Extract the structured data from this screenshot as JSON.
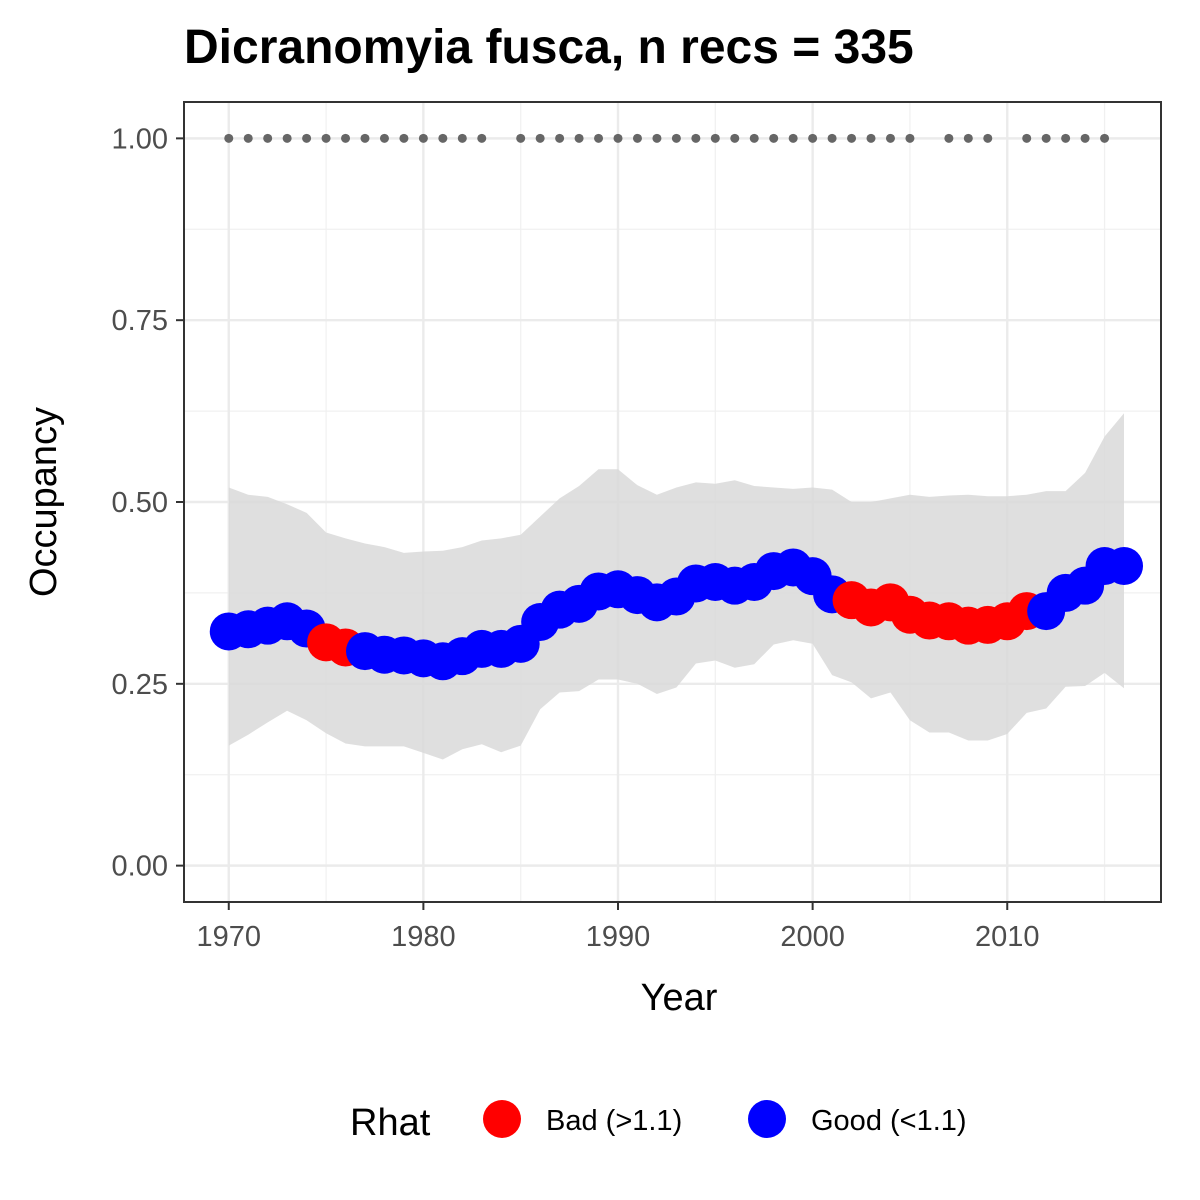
{
  "chart_data": {
    "type": "line",
    "title": "Dicranomyia fusca, n recs = 335",
    "xlabel": "Year",
    "ylabel": "Occupancy",
    "xlim": [
      1967.7,
      2017.9
    ],
    "ylim": [
      -0.05,
      1.05
    ],
    "x_ticks": [
      1970,
      1980,
      1990,
      2000,
      2010
    ],
    "x_tick_labels": [
      "1970",
      "1980",
      "1990",
      "2000",
      "2010"
    ],
    "y_ticks": [
      0,
      0.25,
      0.5,
      0.75,
      1.0
    ],
    "y_tick_labels": [
      "0.00",
      "0.25",
      "0.50",
      "0.75",
      "1.00"
    ],
    "grid": true,
    "legend": {
      "title": "Rhat",
      "position": "bottom",
      "items": [
        {
          "label": "Bad (>1.1)",
          "color": "#ff0000"
        },
        {
          "label": "Good (<1.1)",
          "color": "#0000ff"
        }
      ]
    },
    "colors": {
      "bad": "#ff0000",
      "good": "#0000ff",
      "ribbon": "#d9d9d9",
      "record_dots": "#666666"
    },
    "series": [
      {
        "x": [
          1970,
          1971,
          1972,
          1973,
          1974,
          1975,
          1976,
          1977,
          1978,
          1979,
          1980,
          1981,
          1982,
          1983,
          1984,
          1985,
          1986,
          1987,
          1988,
          1989,
          1990,
          1991,
          1992,
          1993,
          1994,
          1995,
          1996,
          1997,
          1998,
          1999,
          2000,
          2001,
          2002,
          2003,
          2004,
          2005,
          2006,
          2007,
          2008,
          2009,
          2010,
          2011,
          2012,
          2013,
          2014,
          2015,
          2016
        ],
        "values": [
          0.322,
          0.325,
          0.33,
          0.336,
          0.326,
          0.307,
          0.3,
          0.295,
          0.29,
          0.289,
          0.285,
          0.281,
          0.288,
          0.298,
          0.298,
          0.305,
          0.335,
          0.352,
          0.36,
          0.377,
          0.38,
          0.372,
          0.362,
          0.37,
          0.388,
          0.39,
          0.385,
          0.39,
          0.405,
          0.41,
          0.398,
          0.373,
          0.365,
          0.355,
          0.362,
          0.345,
          0.337,
          0.336,
          0.33,
          0.331,
          0.336,
          0.35,
          0.35,
          0.375,
          0.385,
          0.412,
          0.412
        ],
        "lower": [
          0.165,
          0.18,
          0.197,
          0.213,
          0.2,
          0.182,
          0.168,
          0.164,
          0.164,
          0.164,
          0.155,
          0.146,
          0.16,
          0.167,
          0.156,
          0.165,
          0.215,
          0.238,
          0.24,
          0.256,
          0.256,
          0.25,
          0.236,
          0.245,
          0.278,
          0.282,
          0.272,
          0.277,
          0.304,
          0.31,
          0.305,
          0.262,
          0.252,
          0.23,
          0.238,
          0.2,
          0.183,
          0.183,
          0.172,
          0.172,
          0.181,
          0.21,
          0.216,
          0.246,
          0.247,
          0.265,
          0.244
        ],
        "upper": [
          0.52,
          0.51,
          0.507,
          0.497,
          0.485,
          0.458,
          0.45,
          0.443,
          0.438,
          0.43,
          0.432,
          0.433,
          0.438,
          0.447,
          0.45,
          0.455,
          0.48,
          0.505,
          0.522,
          0.545,
          0.545,
          0.523,
          0.51,
          0.52,
          0.527,
          0.525,
          0.53,
          0.522,
          0.52,
          0.518,
          0.52,
          0.517,
          0.5,
          0.5,
          0.505,
          0.51,
          0.507,
          0.509,
          0.51,
          0.508,
          0.508,
          0.51,
          0.515,
          0.515,
          0.54,
          0.59,
          0.622
        ],
        "rhat": [
          "Good",
          "Good",
          "Good",
          "Good",
          "Good",
          "Bad",
          "Bad",
          "Good",
          "Good",
          "Good",
          "Good",
          "Good",
          "Good",
          "Good",
          "Good",
          "Good",
          "Good",
          "Good",
          "Good",
          "Good",
          "Good",
          "Good",
          "Good",
          "Good",
          "Good",
          "Good",
          "Good",
          "Good",
          "Good",
          "Good",
          "Good",
          "Good",
          "Bad",
          "Bad",
          "Bad",
          "Bad",
          "Bad",
          "Bad",
          "Bad",
          "Bad",
          "Bad",
          "Bad",
          "Good",
          "Good",
          "Good",
          "Good",
          "Good"
        ]
      }
    ],
    "record_years": {
      "y": 1.0,
      "x": [
        1970,
        1971,
        1972,
        1973,
        1974,
        1975,
        1976,
        1977,
        1978,
        1979,
        1980,
        1981,
        1982,
        1983,
        1985,
        1986,
        1987,
        1988,
        1989,
        1990,
        1991,
        1992,
        1993,
        1994,
        1995,
        1996,
        1997,
        1998,
        1999,
        2000,
        2001,
        2002,
        2003,
        2004,
        2005,
        2007,
        2008,
        2009,
        2011,
        2012,
        2013,
        2014,
        2015
      ]
    }
  }
}
